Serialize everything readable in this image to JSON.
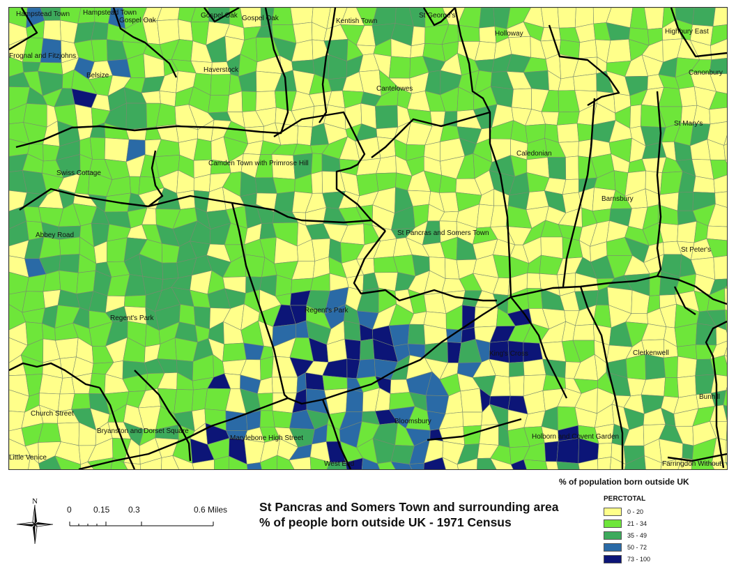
{
  "map": {
    "title": "St Pancras and Somers Town and surrounding area % of people born outside UK - 1971 Census",
    "ward_labels": [
      {
        "name": "Hampstead Town"
      },
      {
        "name": "Hampstead Town"
      },
      {
        "name": "Gospel Oak"
      },
      {
        "name": "Gospel Oak"
      },
      {
        "name": "Gospel Oak"
      },
      {
        "name": "Kentish Town"
      },
      {
        "name": "St George's"
      },
      {
        "name": "Holloway"
      },
      {
        "name": "Highbury East"
      },
      {
        "name": "Frognal and Fitzjohns"
      },
      {
        "name": "Canonbury"
      },
      {
        "name": "Haverstock"
      },
      {
        "name": "Belsize"
      },
      {
        "name": "Cantelowes"
      },
      {
        "name": "St Mary's"
      },
      {
        "name": "Caledonian"
      },
      {
        "name": "Swiss Cottage"
      },
      {
        "name": "Camden Town with Primrose Hill"
      },
      {
        "name": "Barnsbury"
      },
      {
        "name": "Abbey Road"
      },
      {
        "name": "St Pancras and Somers Town"
      },
      {
        "name": "St Peter's"
      },
      {
        "name": "Regent's Park"
      },
      {
        "name": "Regent's Park"
      },
      {
        "name": "King's Cross"
      },
      {
        "name": "Clerkenwell"
      },
      {
        "name": "Bunhill"
      },
      {
        "name": "Church Street"
      },
      {
        "name": "Bryanston and Dorset Square"
      },
      {
        "name": "Bloomsbury"
      },
      {
        "name": "Marylebone High Street"
      },
      {
        "name": "Holborn and Covent Garden"
      },
      {
        "name": "Little Venice"
      },
      {
        "name": "West End"
      },
      {
        "name": "Farringdon Without"
      }
    ]
  },
  "legend": {
    "title": "% of population born outside UK",
    "field": "PERCTOTAL",
    "classes": [
      {
        "label": "0 - 20",
        "color": "#ffff8a"
      },
      {
        "label": "21 - 34",
        "color": "#6ee63a"
      },
      {
        "label": "35 - 49",
        "color": "#3daa5c"
      },
      {
        "label": "50 - 72",
        "color": "#2a6aa6"
      },
      {
        "label": "73 - 100",
        "color": "#0c1577"
      }
    ]
  },
  "scale": {
    "ticks": [
      "0",
      "0.15",
      "0.3",
      "0.6 Miles"
    ]
  },
  "north": {
    "label": "N",
    "icon": "north-arrow-icon"
  }
}
